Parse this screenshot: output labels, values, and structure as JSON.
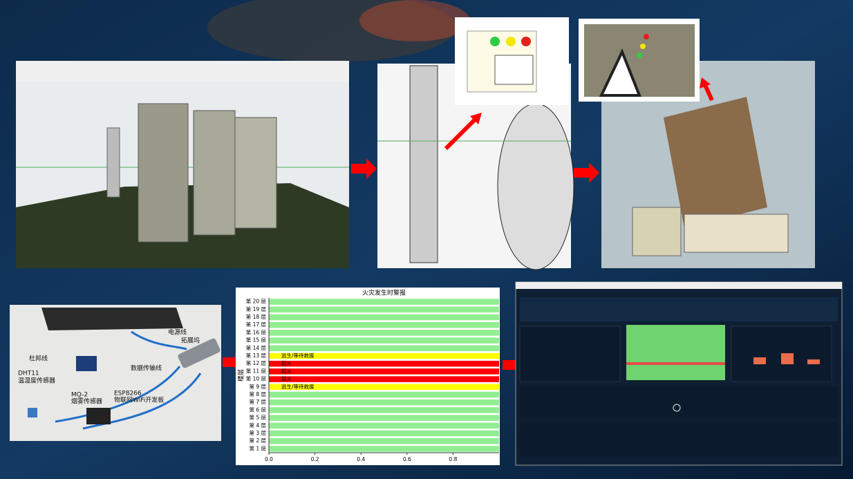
{
  "chart_data": {
    "type": "barh",
    "title": "火灾发生时警报",
    "ylabel": "楼层",
    "categories": [
      "第 1 层",
      "第 2 层",
      "第 3 层",
      "第 4 层",
      "第 5 层",
      "第 6 层",
      "第 7 层",
      "第 8 层",
      "第 9 层",
      "第 10 层",
      "第 11 层",
      "第 12 层",
      "第 13 层",
      "第 14 层",
      "第 15 层",
      "第 16 层",
      "第 17 层",
      "第 18 层",
      "第 19 层",
      "第 20 层"
    ],
    "values": [
      1,
      1,
      1,
      1,
      1,
      1,
      1,
      1,
      1,
      1,
      1,
      1,
      1,
      1,
      1,
      1,
      1,
      1,
      1,
      1
    ],
    "colors": [
      "#90ee90",
      "#90ee90",
      "#90ee90",
      "#90ee90",
      "#90ee90",
      "#90ee90",
      "#90ee90",
      "#90ee90",
      "#ffff00",
      "#ff0000",
      "#ff0000",
      "#ff0000",
      "#ffff00",
      "#90ee90",
      "#90ee90",
      "#90ee90",
      "#90ee90",
      "#90ee90",
      "#90ee90",
      "#90ee90"
    ],
    "status_labels": [
      null,
      null,
      null,
      null,
      null,
      null,
      null,
      null,
      "逃生/等待救援",
      "起火",
      "起火",
      "起火",
      "逃生/等待救援",
      null,
      null,
      null,
      null,
      null,
      null,
      null
    ],
    "xlim": [
      0,
      1
    ],
    "xticks": [
      {
        "value": 0,
        "label": "0.0"
      },
      0.2,
      0.4,
      0.6,
      0.8
    ]
  },
  "hardware_labels": {
    "power_cable": "电源线",
    "dock": "拓展坞",
    "dupont": "杜邦线",
    "data_cable": "数据传输线",
    "dht11": [
      "DHT11",
      "温湿度传感器"
    ],
    "mq2": [
      "MQ-2",
      "烟雾传感器"
    ],
    "esp8266": [
      "ESP8266",
      "物联网WiFi开发板"
    ]
  }
}
